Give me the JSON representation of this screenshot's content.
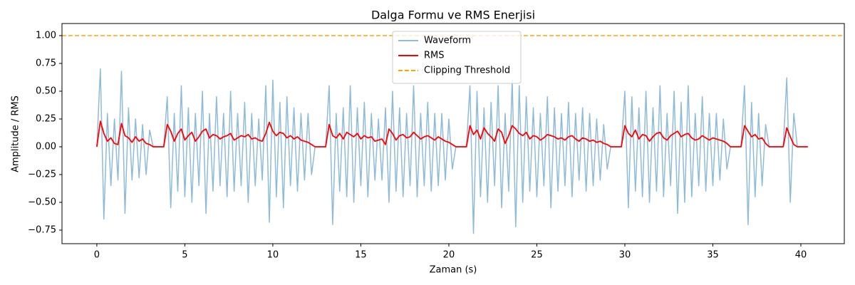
{
  "chart_data": {
    "type": "line",
    "title": "Dalga Formu ve RMS Enerjisi",
    "xlabel": "Zaman (s)",
    "ylabel": "Amplitude / RMS",
    "xlim": [
      -1.98,
      42.47
    ],
    "ylim": [
      -0.872,
      1.109
    ],
    "xticks": [
      0,
      5,
      10,
      15,
      20,
      25,
      30,
      35,
      40
    ],
    "yticks": [
      {
        "value": -0.75,
        "label": "−0.75"
      },
      {
        "value": -0.5,
        "label": "−0.50"
      },
      {
        "value": -0.25,
        "label": "−0.25"
      },
      {
        "value": 0,
        "label": "0.00"
      },
      {
        "value": 0.25,
        "label": "0.25"
      },
      {
        "value": 0.5,
        "label": "0.50"
      },
      {
        "value": 0.75,
        "label": "0.75"
      },
      {
        "value": 1.0,
        "label": "1.00"
      }
    ],
    "legend": "upper center",
    "x": [
      0,
      0.2,
      0.4,
      0.6,
      0.8,
      1,
      1.2,
      1.4,
      1.6,
      1.8,
      2,
      2.2,
      2.4,
      2.6,
      2.8,
      3,
      3.2,
      3.4,
      3.6,
      3.8,
      4,
      4.2,
      4.4,
      4.6,
      4.8,
      5,
      5.2,
      5.4,
      5.6,
      5.8,
      6,
      6.2,
      6.4,
      6.6,
      6.8,
      7,
      7.2,
      7.4,
      7.6,
      7.8,
      8,
      8.2,
      8.4,
      8.6,
      8.8,
      9,
      9.2,
      9.4,
      9.6,
      9.8,
      10,
      10.2,
      10.4,
      10.6,
      10.8,
      11,
      11.2,
      11.4,
      11.6,
      11.8,
      12,
      12.2,
      12.4,
      12.6,
      12.8,
      13,
      13.2,
      13.4,
      13.6,
      13.8,
      14,
      14.2,
      14.4,
      14.6,
      14.8,
      15,
      15.2,
      15.4,
      15.6,
      15.8,
      16,
      16.2,
      16.4,
      16.6,
      16.8,
      17,
      17.2,
      17.4,
      17.6,
      17.8,
      18,
      18.2,
      18.4,
      18.6,
      18.8,
      19,
      19.2,
      19.4,
      19.6,
      19.8,
      20,
      20.2,
      20.4,
      20.6,
      20.8,
      21,
      21.2,
      21.4,
      21.6,
      21.8,
      22,
      22.2,
      22.4,
      22.6,
      22.8,
      23,
      23.2,
      23.4,
      23.6,
      23.8,
      24,
      24.2,
      24.4,
      24.6,
      24.8,
      25,
      25.2,
      25.4,
      25.6,
      25.8,
      26,
      26.2,
      26.4,
      26.6,
      26.8,
      27,
      27.2,
      27.4,
      27.6,
      27.8,
      28,
      28.2,
      28.4,
      28.6,
      28.8,
      29,
      29.2,
      29.4,
      29.6,
      29.8,
      30,
      30.2,
      30.4,
      30.6,
      30.8,
      31,
      31.2,
      31.4,
      31.6,
      31.8,
      32,
      32.2,
      32.4,
      32.6,
      32.8,
      33,
      33.2,
      33.4,
      33.6,
      33.8,
      34,
      34.2,
      34.4,
      34.6,
      34.8,
      35,
      35.2,
      35.4,
      35.6,
      35.8,
      36,
      36.2,
      36.4,
      36.6,
      36.8,
      37,
      37.2,
      37.4,
      37.6,
      37.8,
      38,
      38.2,
      38.4,
      38.6,
      38.8,
      39,
      39.2,
      39.4,
      39.6,
      39.8,
      40,
      40.2,
      40.4
    ],
    "series": [
      {
        "name": "Waveform",
        "color": "#1f77b4",
        "opacity": 0.5,
        "values": [
          0,
          0.7,
          -0.65,
          0.3,
          -0.35,
          0.25,
          -0.3,
          0.68,
          -0.6,
          0.35,
          -0.3,
          0.25,
          -0.28,
          0.2,
          -0.25,
          0.15,
          0,
          0,
          0,
          0,
          0.45,
          -0.55,
          0.3,
          -0.4,
          0.55,
          -0.45,
          0.35,
          -0.5,
          0.3,
          -0.35,
          0.5,
          -0.6,
          0.3,
          -0.4,
          0.45,
          -0.35,
          0.3,
          -0.45,
          0.5,
          -0.4,
          0.3,
          -0.35,
          0.4,
          -0.5,
          0.3,
          -0.35,
          0.25,
          -0.3,
          0.55,
          -0.68,
          0.6,
          -0.45,
          0.4,
          -0.55,
          0.45,
          -0.35,
          0.35,
          -0.4,
          0.3,
          -0.3,
          0.3,
          -0.25,
          0,
          0,
          0,
          0,
          0.55,
          -0.7,
          0.3,
          -0.4,
          0.35,
          -0.45,
          0.55,
          -0.5,
          0.35,
          -0.35,
          0.4,
          -0.45,
          0.3,
          -0.3,
          0.25,
          -0.3,
          0.35,
          -0.5,
          0.5,
          -0.4,
          0.35,
          -0.45,
          0.3,
          -0.35,
          0.55,
          -0.45,
          0.3,
          -0.35,
          0.4,
          -0.4,
          0.3,
          -0.35,
          0.3,
          -0.3,
          0.25,
          -0.2,
          0,
          0,
          0,
          0,
          0.55,
          -0.78,
          0.5,
          -0.45,
          0.35,
          -0.5,
          0.4,
          -0.35,
          0.55,
          -0.55,
          0.3,
          -0.4,
          0.6,
          -0.72,
          0.55,
          -0.5,
          0.45,
          -0.4,
          0.35,
          -0.45,
          0.3,
          -0.35,
          0.45,
          -0.55,
          0.35,
          -0.4,
          0.3,
          -0.35,
          0.4,
          -0.45,
          0.3,
          -0.3,
          0.35,
          -0.4,
          0.3,
          -0.35,
          0.25,
          -0.3,
          0.2,
          -0.2,
          0,
          0,
          0,
          0,
          0.5,
          -0.55,
          0.45,
          -0.4,
          0.35,
          -0.45,
          0.5,
          -0.5,
          0.35,
          -0.4,
          0.55,
          -0.45,
          0.3,
          -0.35,
          0.5,
          -0.6,
          0.4,
          -0.5,
          0.55,
          -0.45,
          0.3,
          -0.35,
          0.45,
          -0.4,
          0.3,
          -0.35,
          0.3,
          -0.3,
          0.25,
          -0.2,
          0,
          0,
          0,
          0,
          0.55,
          -0.7,
          0.4,
          -0.45,
          0.3,
          -0.35,
          0.2,
          0,
          0,
          0,
          0,
          0,
          0.62,
          -0.5,
          0.3,
          0,
          0,
          0,
          0
        ]
      },
      {
        "name": "RMS",
        "color": "#ff0000",
        "opacity": 1,
        "values": [
          0,
          0.23,
          0.12,
          0.05,
          0.08,
          0.03,
          0.02,
          0.21,
          0.1,
          0.08,
          0.04,
          0.09,
          0.05,
          0.07,
          0.03,
          0.02,
          0,
          0,
          0,
          0,
          0.2,
          0.14,
          0.05,
          0.12,
          0.16,
          0.06,
          0.1,
          0.13,
          0.05,
          0.09,
          0.14,
          0.16,
          0.08,
          0.11,
          0.1,
          0.07,
          0.09,
          0.1,
          0.12,
          0.06,
          0.08,
          0.1,
          0.09,
          0.11,
          0.07,
          0.08,
          0.06,
          0.05,
          0.12,
          0.22,
          0.14,
          0.1,
          0.13,
          0.12,
          0.08,
          0.1,
          0.07,
          0.09,
          0.06,
          0.05,
          0.04,
          0.02,
          0,
          0,
          0,
          0,
          0.2,
          0.1,
          0.08,
          0.12,
          0.07,
          0.13,
          0.11,
          0.09,
          0.12,
          0.07,
          0.1,
          0.08,
          0.09,
          0.05,
          0.06,
          0.07,
          0.02,
          0.16,
          0.12,
          0.06,
          0.1,
          0.11,
          0.08,
          0.09,
          0.13,
          0.1,
          0.07,
          0.09,
          0.1,
          0.08,
          0.06,
          0.09,
          0.07,
          0.05,
          0.04,
          0.02,
          0,
          0,
          0,
          0,
          0.19,
          0.11,
          0.15,
          0.07,
          0.17,
          0.12,
          0.09,
          0.05,
          0.16,
          0.13,
          0.03,
          0.1,
          0.19,
          0.16,
          0.12,
          0.1,
          0.13,
          0.07,
          0.1,
          0.09,
          0.06,
          0.08,
          0.11,
          0.1,
          0.09,
          0.07,
          0.08,
          0.06,
          0.09,
          0.1,
          0.07,
          0.05,
          0.08,
          0.07,
          0.05,
          0.06,
          0.04,
          0.05,
          0.03,
          0.02,
          0,
          0,
          0,
          0,
          0.19,
          0.12,
          0.09,
          0.15,
          0.07,
          0.11,
          0.1,
          0.05,
          0.09,
          0.12,
          0.13,
          0.08,
          0.06,
          0.1,
          0.12,
          0.14,
          0.09,
          0.11,
          0.12,
          0.08,
          0.06,
          0.07,
          0.1,
          0.08,
          0.06,
          0.08,
          0.07,
          0.06,
          0.05,
          0.03,
          0,
          0,
          0,
          0,
          0.19,
          0.14,
          0.09,
          0.11,
          0.07,
          0.08,
          0.03,
          0,
          0,
          0,
          0,
          0,
          0.17,
          0.09,
          0.02,
          0,
          0,
          0,
          0
        ]
      }
    ],
    "hline": {
      "name": "Clipping Threshold",
      "value": 1.0,
      "color": "#ffa500",
      "dashed": true
    }
  }
}
